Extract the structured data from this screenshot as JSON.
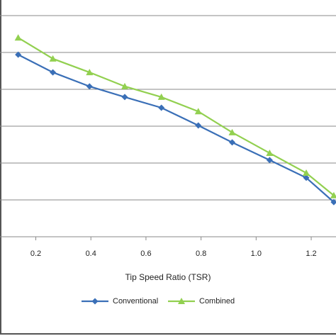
{
  "chart_data": {
    "type": "line",
    "x_label": "Tip Speed Ratio (TSR)",
    "xlim": [
      0.07,
      1.29
    ],
    "xticks": [
      0.2,
      0.4,
      0.6,
      0.8,
      {
        "value": 1,
        "label": "1.0"
      },
      1.2
    ],
    "ylim": [
      0,
      6.4
    ],
    "ygrid": [
      1,
      2,
      3,
      4,
      5,
      6
    ],
    "legend": "bottom",
    "series": [
      {
        "name": "Conventional",
        "color": "#3a6fb7",
        "marker": "diamond",
        "x": [
          0.136,
          0.262,
          0.395,
          0.523,
          0.656,
          0.79,
          0.913,
          1.049,
          1.182,
          1.282
        ],
        "values": [
          4.94,
          4.46,
          4.08,
          3.79,
          3.5,
          3.02,
          2.56,
          2.08,
          1.6,
          0.94
        ]
      },
      {
        "name": "Combined",
        "color": "#92d050",
        "marker": "triangle",
        "x": [
          0.136,
          0.262,
          0.395,
          0.523,
          0.656,
          0.79,
          0.913,
          1.049,
          1.182,
          1.282
        ],
        "values": [
          5.4,
          4.83,
          4.46,
          4.08,
          3.79,
          3.4,
          2.83,
          2.27,
          1.73,
          1.12
        ]
      }
    ]
  }
}
